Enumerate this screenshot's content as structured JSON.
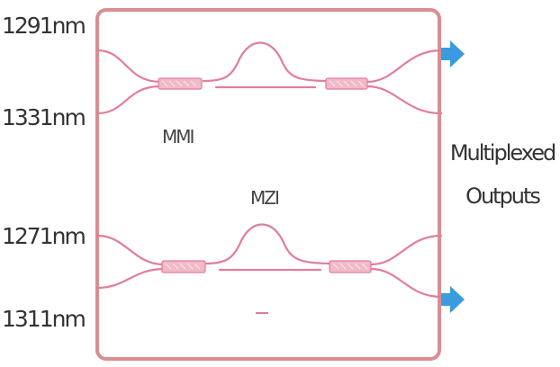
{
  "inputs": {
    "w1": "1291nm",
    "w2": "1331nm",
    "w3": "1271nm",
    "w4": "1311nm"
  },
  "labels": {
    "mmi": "MMI",
    "mzi": "MZI",
    "out_line1": "Multiplexed",
    "out_line2": "Outputs"
  },
  "colors": {
    "chip_border": "#d98e92",
    "waveguide": "#e27d9a",
    "coupler_fill": "#f2b9c8",
    "output_arrow": "#3a9be0",
    "text": "#333333"
  },
  "icons": {
    "output_arrow": "right-arrow-icon"
  }
}
